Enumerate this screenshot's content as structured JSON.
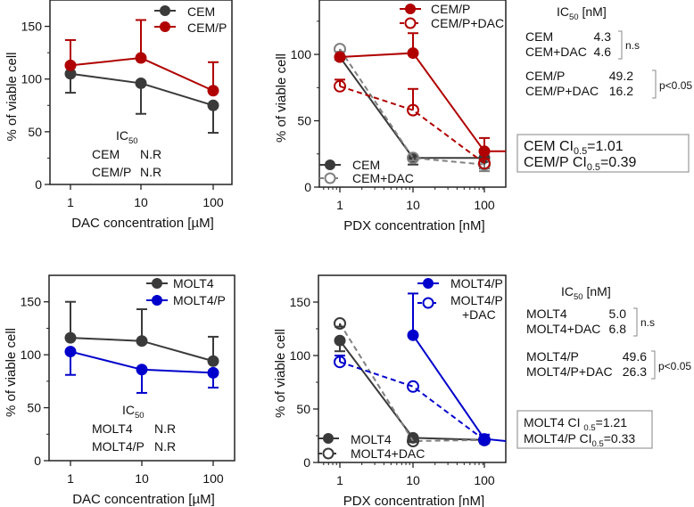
{
  "colors": {
    "dark": "#3a3a3a",
    "gray": "#808080",
    "red": "#b00000",
    "blue": "#0000cc"
  },
  "chart_data": [
    {
      "id": "A",
      "type": "line",
      "xscale": "log",
      "x": [
        1,
        10,
        100
      ],
      "xticklabels": [
        "1",
        "10",
        "100"
      ],
      "xlabel": "DAC concentration [µM]",
      "ylabel": "% of viable cell",
      "ylim": [
        0,
        175
      ],
      "yticks": [
        0,
        50,
        100,
        150
      ],
      "series": [
        {
          "name": "CEM",
          "color": "dark",
          "marker": "filled",
          "dash": false,
          "values": [
            105,
            96,
            75
          ],
          "err": [
            18,
            29,
            26
          ],
          "errdir": "down"
        },
        {
          "name": "CEM/P",
          "color": "red",
          "marker": "filled",
          "dash": false,
          "values": [
            113,
            120,
            89
          ],
          "err": [
            24,
            36,
            27
          ],
          "errdir": "up"
        }
      ],
      "annotation": {
        "ic_label": "IC",
        "ic_sub": "50",
        "rows": [
          [
            "CEM",
            "N.R"
          ],
          [
            "CEM/P",
            "N.R"
          ]
        ]
      }
    },
    {
      "id": "B",
      "type": "line",
      "xscale": "log",
      "x": [
        1,
        10,
        100
      ],
      "xticklabels": [
        "1",
        "10",
        "100"
      ],
      "xlabel": "PDX concentration [nM]",
      "ylabel": "% of viable cell",
      "ylim": [
        0,
        141
      ],
      "yticks": [
        0,
        50,
        100
      ],
      "series": [
        {
          "name": "CEM",
          "color": "dark",
          "marker": "filled",
          "dash": false,
          "values": [
            98,
            22,
            22
          ],
          "err": [
            2,
            5,
            8
          ],
          "errdir": "down"
        },
        {
          "name": "CEM+DAC",
          "color": "gray",
          "marker": "open",
          "dash": true,
          "values": [
            104,
            22,
            17
          ],
          "err": [
            2,
            2,
            5
          ],
          "errdir": "down"
        },
        {
          "name": "CEM/P",
          "color": "red",
          "marker": "filled",
          "dash": false,
          "values": [
            98,
            101,
            27
          ],
          "err": [
            1,
            15,
            10
          ],
          "errdir": "up",
          "extend": 27
        },
        {
          "name": "CEM/P+DAC",
          "color": "red",
          "marker": "open",
          "dash": true,
          "values": [
            76,
            58,
            18
          ],
          "err": [
            5,
            16,
            3
          ],
          "errdir": "up"
        }
      ]
    },
    {
      "id": "C",
      "type": "line",
      "xscale": "log",
      "x": [
        1,
        10,
        100
      ],
      "xticklabels": [
        "1",
        "10",
        "100"
      ],
      "xlabel": "DAC concentration [µM]",
      "ylabel": "% of viable cell",
      "ylim": [
        0,
        175
      ],
      "yticks": [
        0,
        50,
        100,
        150
      ],
      "series": [
        {
          "name": "MOLT4",
          "color": "dark",
          "marker": "filled",
          "dash": false,
          "values": [
            116,
            113,
            94
          ],
          "err": [
            34,
            30,
            23
          ],
          "errdir": "up"
        },
        {
          "name": "MOLT4/P",
          "color": "blue",
          "marker": "filled",
          "dash": false,
          "values": [
            103,
            86,
            83
          ],
          "err": [
            22,
            22,
            14
          ],
          "errdir": "down"
        }
      ],
      "annotation": {
        "ic_label": "IC",
        "ic_sub": "50",
        "rows": [
          [
            "MOLT4",
            "N.R"
          ],
          [
            "MOLT4/P",
            "N.R"
          ]
        ]
      }
    },
    {
      "id": "D",
      "type": "line",
      "xscale": "log",
      "x": [
        1,
        10,
        100
      ],
      "xticklabels": [
        "1",
        "10",
        "100"
      ],
      "xlabel": "PDX concentration [nM]",
      "ylabel": "% of viable cell",
      "ylim": [
        0,
        175
      ],
      "yticks": [
        0,
        50,
        100,
        150
      ],
      "series": [
        {
          "name": "MOLT4",
          "color": "dark",
          "marker": "filled",
          "dash": false,
          "values": [
            114,
            23,
            21
          ],
          "err": [
            10,
            2,
            3
          ],
          "errdir": "down"
        },
        {
          "name": "MOLT4+DAC",
          "color": "dark",
          "marker": "open",
          "dash": true,
          "values": [
            130,
            20,
            21
          ],
          "err": [
            3,
            1,
            3
          ],
          "errdir": "down",
          "linecolor": "gray"
        },
        {
          "name": "MOLT4/P",
          "color": "blue",
          "marker": "filled",
          "dash": false,
          "values": [
            null,
            119,
            22
          ],
          "err": [
            0,
            39,
            4
          ],
          "errdir": "up",
          "extend": 20
        },
        {
          "name": "MOLT4/P+DAC",
          "color": "blue",
          "marker": "open",
          "dash": true,
          "values": [
            94,
            71,
            21
          ],
          "err": [
            6,
            0,
            2
          ],
          "errdir": "up"
        }
      ]
    }
  ],
  "stats_top": {
    "ic_header": "IC",
    "ic_sub": "50",
    "ic_unit": " [nM]",
    "group1": [
      [
        "CEM",
        "4.3"
      ],
      [
        "CEM+DAC",
        "4.6"
      ]
    ],
    "group1_sig": "n.s",
    "group2": [
      [
        "CEM/P",
        "49.2"
      ],
      [
        "CEM/P+DAC",
        "16.2"
      ]
    ],
    "group2_sig": "p<0.05",
    "ci": [
      [
        "CEM    CI",
        "0.5",
        "=1.01"
      ],
      [
        "CEM/P CI",
        "0.5",
        "=0.39"
      ]
    ]
  },
  "stats_bottom": {
    "ic_header": "IC",
    "ic_sub": "50",
    "ic_unit": " [nM]",
    "group1": [
      [
        "MOLT4",
        "5.0"
      ],
      [
        "MOLT4+DAC",
        "6.8"
      ]
    ],
    "group1_sig": "n.s",
    "group2": [
      [
        "MOLT4/P",
        "49.6"
      ],
      [
        "MOLT4/P+DAC",
        "26.3"
      ]
    ],
    "group2_sig": "p<0.05",
    "ci": [
      [
        "MOLT4   CI ",
        "0.5",
        "=1.21"
      ],
      [
        "MOLT4/P CI",
        "0.5",
        "=0.33"
      ]
    ]
  },
  "legend_extra": {
    "molt4p_dac_line1": "MOLT4/P",
    "molt4p_dac_line2": "+DAC"
  }
}
